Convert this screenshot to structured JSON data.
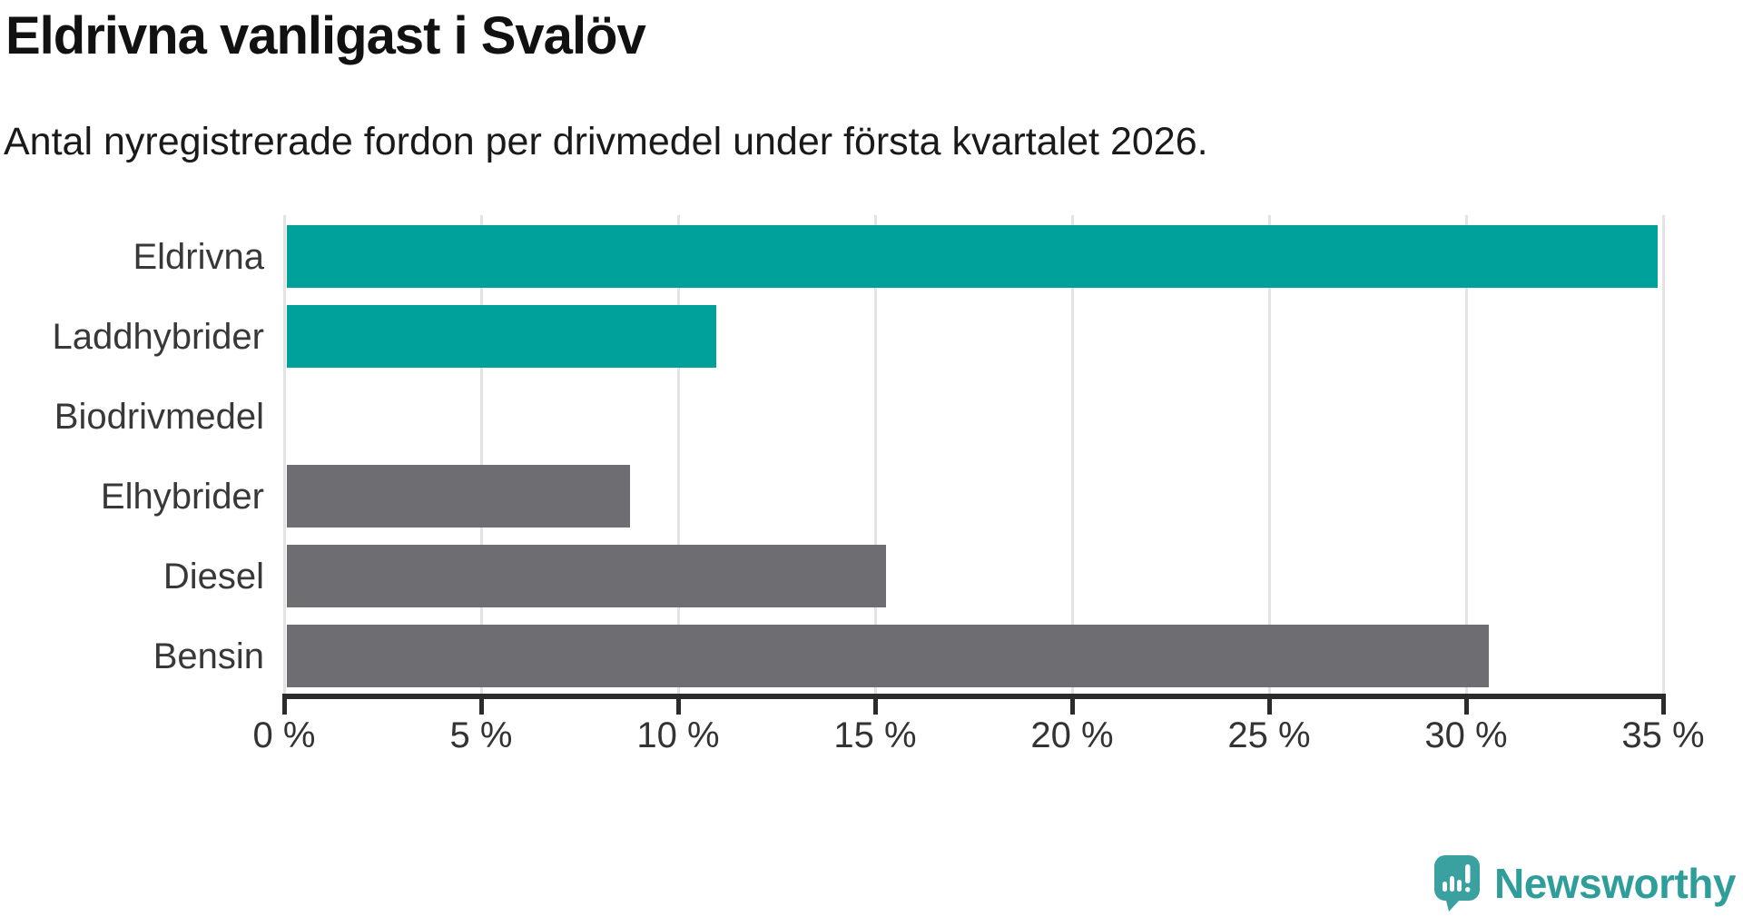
{
  "title": "Eldrivna vanligast i Svalöv",
  "subtitle": "Antal nyregistrerade fordon per drivmedel under första kvartalet 2026.",
  "branding": {
    "logo_text": "Newsworthy",
    "logo_icon": "newsworthy-speech-bubble-chart-icon",
    "logo_text_color": "#2f9e9b",
    "logo_icon_color": "#3aa0a0"
  },
  "chart_data": {
    "type": "bar",
    "orientation": "horizontal",
    "title": "Eldrivna vanligast i Svalöv",
    "subtitle": "Antal nyregistrerade fordon per drivmedel under första kvartalet 2026.",
    "categories": [
      "Eldrivna",
      "Laddhybrider",
      "Biodrivmedel",
      "Elhybrider",
      "Diesel",
      "Bensin"
    ],
    "values": [
      34.8,
      10.9,
      0,
      8.7,
      15.2,
      30.5
    ],
    "unit": "%",
    "bar_colors": [
      "#00a19a",
      "#00a19a",
      "#6d6d72",
      "#6d6d72",
      "#6d6d72",
      "#6d6d72"
    ],
    "highlight_color": "#00a19a",
    "default_color": "#6d6d72",
    "xlabel": "",
    "ylabel": "",
    "xlim": [
      0,
      35
    ],
    "x_ticks": [
      0,
      5,
      10,
      15,
      20,
      25,
      30,
      35
    ],
    "x_tick_labels": [
      "0 %",
      "5 %",
      "10 %",
      "15 %",
      "20 %",
      "25 %",
      "30 %",
      "35 %"
    ],
    "grid": true,
    "legend": false
  }
}
